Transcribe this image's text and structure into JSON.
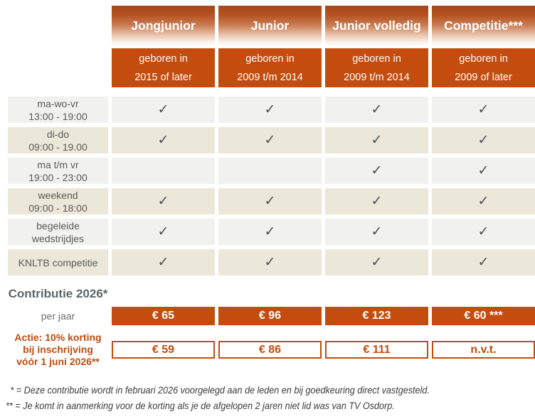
{
  "columns": [
    {
      "title": "Jongjunior",
      "born": [
        "geboren in",
        "2015 of later"
      ]
    },
    {
      "title": "Junior",
      "born": [
        "geboren in",
        "2009 t/m 2014"
      ]
    },
    {
      "title": "Junior volledig",
      "born": [
        "geboren in",
        "2009 t/m 2014"
      ]
    },
    {
      "title": "Competitie***",
      "born": [
        "geboren in",
        "2009 of later"
      ]
    }
  ],
  "rows": [
    {
      "label": [
        "ma-wo-vr",
        "13:00 - 19:00"
      ],
      "checks": [
        "✓",
        "✓",
        "✓",
        "✓"
      ]
    },
    {
      "label": [
        "di-do",
        "09:00 - 19.00"
      ],
      "checks": [
        "✓",
        "✓",
        "✓",
        "✓"
      ]
    },
    {
      "label": [
        "ma t/m vr",
        "19:00 - 23:00"
      ],
      "checks": [
        "",
        "",
        "✓",
        "✓"
      ]
    },
    {
      "label": [
        "weekend",
        "09:00 - 18:00"
      ],
      "checks": [
        "✓",
        "✓",
        "✓",
        "✓"
      ]
    },
    {
      "label": [
        "begeleide",
        "wedstrijdjes"
      ],
      "checks": [
        "✓",
        "✓",
        "✓",
        "✓"
      ]
    },
    {
      "label": [
        "KNLTB competitie",
        ""
      ],
      "checks": [
        "✓",
        "✓",
        "✓",
        "✓"
      ]
    }
  ],
  "contribution": {
    "title": "Contributie 2026*",
    "per_year_label": "per jaar",
    "per_year_values": [
      "€ 65",
      "€ 96",
      "€ 123",
      "€ 60 ***"
    ],
    "discount_label": [
      "Actie: 10% korting",
      "bij inschrijving",
      "vóór 1 juni 2026**"
    ],
    "discount_values": [
      "€ 59",
      "€ 86",
      "€ 111",
      "n.v.t."
    ]
  },
  "footnotes": [
    "* = Deze contributie wordt in februari 2026 voorgelegd aan de leden en bij goedkeuring direct vastgesteld.",
    "** = Je komt in aanmerking voor de korting als je de afgelopen 2 jaren niet lid was van TV Osdorp."
  ],
  "icons": {
    "check_icon": "✓"
  },
  "colors": {
    "accent_orange": "#c44c0e",
    "check_gray": "#4a4e55",
    "row_gray": "#f1f1ef",
    "row_beige": "#ebe7d9",
    "title_gray": "#5c666c"
  }
}
